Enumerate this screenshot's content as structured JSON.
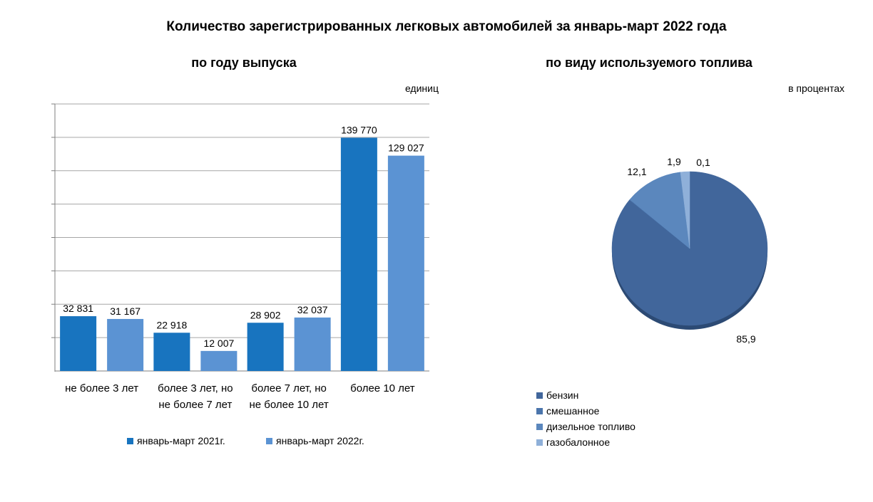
{
  "title": "Количество зарегистрированных легковых автомобилей за январь-март 2022 года",
  "colors": {
    "series_2021": "#1874bf",
    "series_2022": "#5b93d3",
    "gridline": "#a6a6a6",
    "pie_petrol": "#41669b",
    "pie_hybrid": "#4b75ac",
    "pie_diesel": "#5b87bd",
    "pie_gas": "#8fb0d9"
  },
  "chart_data": [
    {
      "type": "bar",
      "title": "по году выпуска",
      "unit": "единиц",
      "categories": [
        [
          "не более 3 лет"
        ],
        [
          "более 3 лет, но",
          "не более 7 лет"
        ],
        [
          "более 7 лет, но",
          "не более 10 лет"
        ],
        [
          "более 10 лет"
        ]
      ],
      "series": [
        {
          "name": "январь-март 2021г.",
          "values": [
            32831,
            22918,
            28902,
            139770
          ],
          "labels": [
            "32 831",
            "22 918",
            "28 902",
            "139 770"
          ]
        },
        {
          "name": "январь-март 2022г.",
          "values": [
            31167,
            12007,
            32037,
            129027
          ],
          "labels": [
            "31 167",
            "12 007",
            "32 037",
            "129 027"
          ]
        }
      ],
      "ylim": [
        0,
        160000
      ],
      "grid": true,
      "legend": "bottom"
    },
    {
      "type": "pie",
      "title": "по виду используемого топлива",
      "unit": "в процентах",
      "slices": [
        {
          "name": "бензин",
          "value": 85.9,
          "label": "85,9"
        },
        {
          "name": "смешанное",
          "value": 0.1,
          "label": "0,1"
        },
        {
          "name": "дизельное топливо",
          "value": 12.1,
          "label": "12,1"
        },
        {
          "name": "газобалонное",
          "value": 1.9,
          "label": "1,9"
        }
      ],
      "legend": "bottom-left"
    }
  ]
}
